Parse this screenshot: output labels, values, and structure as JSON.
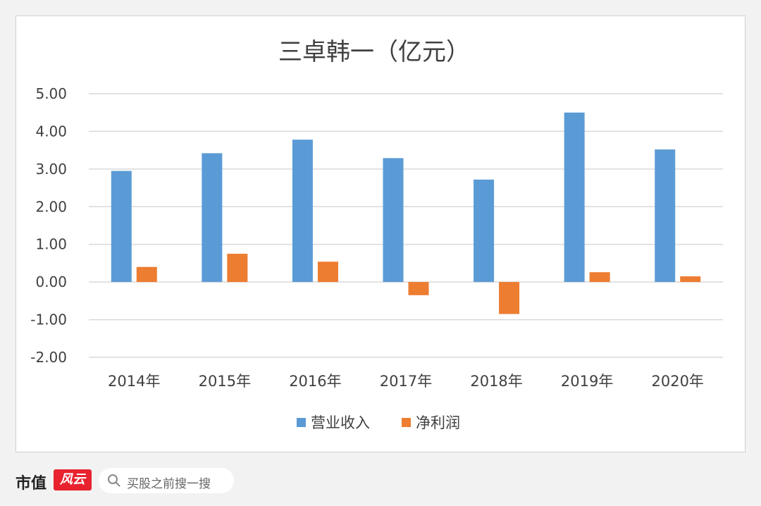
{
  "chart_data": {
    "type": "bar",
    "title": "三卓韩一（亿元）",
    "categories": [
      "2014年",
      "2015年",
      "2016年",
      "2017年",
      "2018年",
      "2019年",
      "2020年"
    ],
    "series": [
      {
        "name": "营业收入",
        "color": "#5b9bd5",
        "values": [
          2.95,
          3.42,
          3.78,
          3.29,
          2.72,
          4.5,
          3.52
        ]
      },
      {
        "name": "净利润",
        "color": "#ed7d31",
        "values": [
          0.4,
          0.75,
          0.54,
          -0.35,
          -0.85,
          0.26,
          0.15
        ]
      }
    ],
    "yticks": [
      "5.00",
      "4.00",
      "3.00",
      "2.00",
      "1.00",
      "0.00",
      "-1.00",
      "-2.00"
    ],
    "ylim": [
      -2,
      5
    ],
    "grid": true,
    "legend": "bottom"
  },
  "brand": {
    "name": "市值",
    "logo_text": "风云",
    "search_placeholder": "买股之前搜一搜",
    "search_icon": "search-icon"
  }
}
